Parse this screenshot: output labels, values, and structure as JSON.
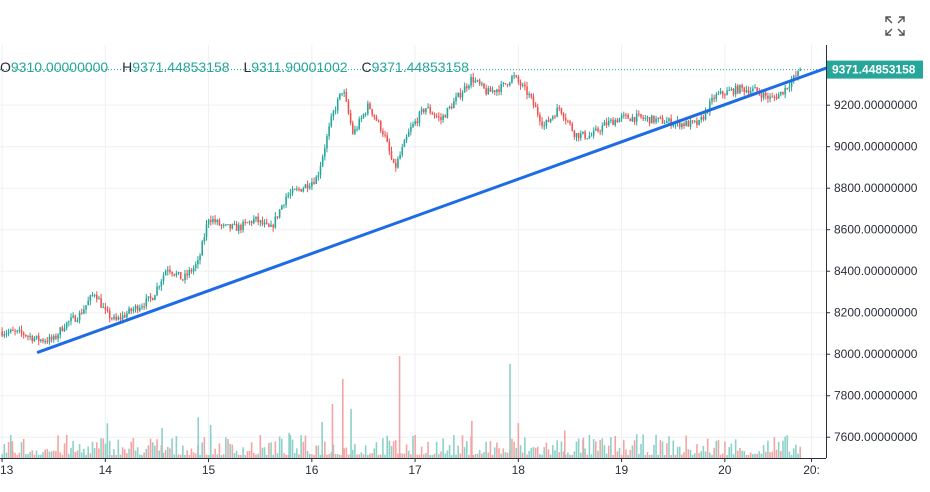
{
  "ohlc_legend": {
    "open_label": "O",
    "open_value": "9310.00000000",
    "high_label": "H",
    "high_value": "9371.44853158",
    "low_label": "L",
    "low_value": "9311.90001002",
    "close_label": "C",
    "close_value": "9371.44853158"
  },
  "last_price_label": "9371.44853158",
  "colors": {
    "up": "#26a69a",
    "down": "#ef5350",
    "up_volume": "#8ed1c9",
    "down_volume": "#f4a5a3",
    "trendline": "#1e6be6",
    "grid": "#eef0f3",
    "axis_line": "#2a2e39"
  },
  "icons": {
    "fullscreen": "fullscreen-icon"
  },
  "chart_data": {
    "type": "candlestick",
    "x_axis": {
      "ticks": [
        {
          "label": "13",
          "day": 13
        },
        {
          "label": "14",
          "day": 14
        },
        {
          "label": "15",
          "day": 15
        },
        {
          "label": "16",
          "day": 16
        },
        {
          "label": "17",
          "day": 17
        },
        {
          "label": "18",
          "day": 18
        },
        {
          "label": "19",
          "day": 19
        },
        {
          "label": "20",
          "day": 20
        },
        {
          "label": "20:",
          "day": 20.84
        }
      ],
      "visible_range": [
        12.98,
        20.98
      ]
    },
    "y_axis": {
      "ticks": [
        {
          "label": "9200.00000000",
          "value": 9200
        },
        {
          "label": "9000.00000000",
          "value": 9000
        },
        {
          "label": "8800.00000000",
          "value": 8800
        },
        {
          "label": "8600.00000000",
          "value": 8600
        },
        {
          "label": "8400.00000000",
          "value": 8400
        },
        {
          "label": "8200.00000000",
          "value": 8200
        },
        {
          "label": "8000.00000000",
          "value": 8000
        },
        {
          "label": "7800.00000000",
          "value": 7800
        },
        {
          "label": "7600.00000000",
          "value": 7600
        }
      ],
      "range": [
        7500,
        9490
      ]
    },
    "last_price": 9371.44853158,
    "close_path": [
      [
        12.98,
        8110
      ],
      [
        13.2,
        8100
      ],
      [
        13.35,
        8070
      ],
      [
        13.5,
        8070
      ],
      [
        13.6,
        8140
      ],
      [
        13.75,
        8190
      ],
      [
        13.9,
        8300
      ],
      [
        14.0,
        8200
      ],
      [
        14.1,
        8160
      ],
      [
        14.25,
        8210
      ],
      [
        14.45,
        8270
      ],
      [
        14.6,
        8420
      ],
      [
        14.75,
        8360
      ],
      [
        14.9,
        8440
      ],
      [
        15.0,
        8660
      ],
      [
        15.15,
        8610
      ],
      [
        15.3,
        8610
      ],
      [
        15.45,
        8650
      ],
      [
        15.6,
        8600
      ],
      [
        15.75,
        8760
      ],
      [
        15.9,
        8800
      ],
      [
        16.05,
        8850
      ],
      [
        16.2,
        9150
      ],
      [
        16.3,
        9280
      ],
      [
        16.4,
        9060
      ],
      [
        16.55,
        9200
      ],
      [
        16.7,
        9060
      ],
      [
        16.8,
        8890
      ],
      [
        16.95,
        9080
      ],
      [
        17.1,
        9190
      ],
      [
        17.25,
        9130
      ],
      [
        17.4,
        9230
      ],
      [
        17.55,
        9330
      ],
      [
        17.7,
        9260
      ],
      [
        17.85,
        9290
      ],
      [
        17.95,
        9340
      ],
      [
        18.1,
        9250
      ],
      [
        18.25,
        9100
      ],
      [
        18.4,
        9190
      ],
      [
        18.55,
        9060
      ],
      [
        18.7,
        9050
      ],
      [
        18.85,
        9110
      ],
      [
        19.0,
        9140
      ],
      [
        19.15,
        9140
      ],
      [
        19.3,
        9130
      ],
      [
        19.45,
        9120
      ],
      [
        19.6,
        9110
      ],
      [
        19.75,
        9110
      ],
      [
        19.9,
        9240
      ],
      [
        20.0,
        9260
      ],
      [
        20.15,
        9280
      ],
      [
        20.3,
        9270
      ],
      [
        20.45,
        9230
      ],
      [
        20.55,
        9260
      ],
      [
        20.65,
        9320
      ],
      [
        20.75,
        9371
      ]
    ],
    "volume_spikes": [
      {
        "day": 13.1,
        "rel": 0.28,
        "dir": "down"
      },
      {
        "day": 14.02,
        "rel": 0.58,
        "dir": "up"
      },
      {
        "day": 14.55,
        "rel": 0.5,
        "dir": "up"
      },
      {
        "day": 14.9,
        "rel": 0.68,
        "dir": "up"
      },
      {
        "day": 15.02,
        "rel": 0.55,
        "dir": "up"
      },
      {
        "day": 15.78,
        "rel": 0.42,
        "dir": "up"
      },
      {
        "day": 16.1,
        "rel": 0.6,
        "dir": "up"
      },
      {
        "day": 16.2,
        "rel": 0.9,
        "dir": "down"
      },
      {
        "day": 16.3,
        "rel": 1.32,
        "dir": "down"
      },
      {
        "day": 16.38,
        "rel": 0.82,
        "dir": "up"
      },
      {
        "day": 16.85,
        "rel": 1.7,
        "dir": "down"
      },
      {
        "day": 17.55,
        "rel": 0.62,
        "dir": "down"
      },
      {
        "day": 17.92,
        "rel": 1.57,
        "dir": "up"
      },
      {
        "day": 18.0,
        "rel": 0.58,
        "dir": "down"
      },
      {
        "day": 18.45,
        "rel": 0.46,
        "dir": "down"
      },
      {
        "day": 18.63,
        "rel": 0.34,
        "dir": "down"
      }
    ],
    "trendline": {
      "start": [
        13.35,
        8010
      ],
      "end": [
        21.1,
        9400
      ]
    },
    "grid": true
  }
}
